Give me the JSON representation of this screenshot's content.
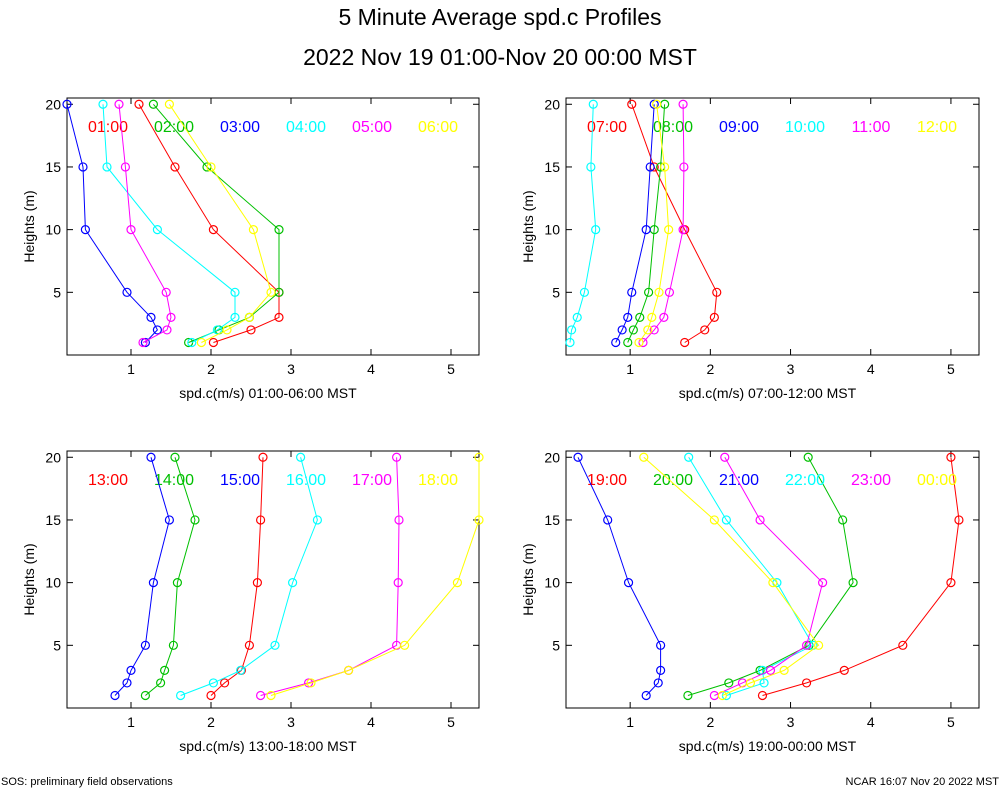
{
  "page": {
    "title": "5 Minute Average spd.c Profiles",
    "subtitle": "2022 Nov 19 01:00-Nov 20 00:00 MST",
    "footer_left": "SOS: preliminary field observations",
    "footer_right": "NCAR 16:07 Nov 20 2022 MST"
  },
  "colors": [
    "#ff0000",
    "#00c000",
    "#0000ff",
    "#00ffff",
    "#ff00ff",
    "#ffff00"
  ],
  "chart_data": [
    {
      "type": "line",
      "xlabel": "spd.c(m/s) 01:00-06:00 MST",
      "ylabel": "Heights (m)",
      "xlim": [
        0.2,
        5.35
      ],
      "ylim": [
        0,
        20.5
      ],
      "xticks": [
        1,
        2,
        3,
        4,
        5
      ],
      "yticks": [
        5,
        10,
        15,
        20
      ],
      "heights": [
        1,
        2,
        3,
        5,
        10,
        15,
        20
      ],
      "series": [
        {
          "name": "01:00",
          "values": [
            2.03,
            2.5,
            2.85,
            2.85,
            2.03,
            1.55,
            1.1
          ]
        },
        {
          "name": "02:00",
          "values": [
            1.72,
            2.1,
            2.48,
            2.85,
            2.85,
            1.95,
            1.28
          ]
        },
        {
          "name": "03:00",
          "values": [
            1.18,
            1.33,
            1.25,
            0.95,
            0.43,
            0.4,
            0.2
          ]
        },
        {
          "name": "04:00",
          "values": [
            1.76,
            2.08,
            2.3,
            2.3,
            1.33,
            0.7,
            0.65
          ]
        },
        {
          "name": "05:00",
          "values": [
            1.15,
            1.45,
            1.5,
            1.44,
            1.0,
            0.93,
            0.85
          ]
        },
        {
          "name": "06:00",
          "values": [
            1.88,
            2.2,
            2.48,
            2.75,
            2.53,
            2.0,
            1.48
          ]
        }
      ]
    },
    {
      "type": "line",
      "xlabel": "spd.c(m/s) 07:00-12:00 MST",
      "ylabel": "Heights (m)",
      "xlim": [
        0.2,
        5.35
      ],
      "ylim": [
        0,
        20.5
      ],
      "xticks": [
        1,
        2,
        3,
        4,
        5
      ],
      "yticks": [
        5,
        10,
        15,
        20
      ],
      "heights": [
        1,
        2,
        3,
        5,
        10,
        15,
        20
      ],
      "series": [
        {
          "name": "07:00",
          "values": [
            1.68,
            1.93,
            2.05,
            2.08,
            1.68,
            1.3,
            1.02
          ]
        },
        {
          "name": "08:00",
          "values": [
            0.97,
            1.04,
            1.12,
            1.23,
            1.3,
            1.38,
            1.43
          ]
        },
        {
          "name": "09:00",
          "values": [
            0.82,
            0.9,
            0.97,
            1.02,
            1.2,
            1.25,
            1.3
          ]
        },
        {
          "name": "10:00",
          "values": [
            0.25,
            0.27,
            0.34,
            0.43,
            0.57,
            0.51,
            0.54
          ]
        },
        {
          "name": "11:00",
          "values": [
            1.16,
            1.3,
            1.42,
            1.49,
            1.66,
            1.67,
            1.66
          ]
        },
        {
          "name": "12:00",
          "values": [
            1.11,
            1.22,
            1.27,
            1.36,
            1.48,
            1.43,
            1.33
          ]
        }
      ]
    },
    {
      "type": "line",
      "xlabel": "spd.c(m/s) 13:00-18:00 MST",
      "ylabel": "Heights (m)",
      "xlim": [
        0.2,
        5.35
      ],
      "ylim": [
        0,
        20.5
      ],
      "xticks": [
        1,
        2,
        3,
        4,
        5
      ],
      "yticks": [
        5,
        10,
        15,
        20
      ],
      "heights": [
        1,
        2,
        3,
        5,
        10,
        15,
        20
      ],
      "series": [
        {
          "name": "13:00",
          "values": [
            2.0,
            2.17,
            2.38,
            2.48,
            2.58,
            2.62,
            2.65
          ]
        },
        {
          "name": "14:00",
          "values": [
            1.18,
            1.37,
            1.42,
            1.53,
            1.58,
            1.8,
            1.55
          ]
        },
        {
          "name": "15:00",
          "values": [
            0.8,
            0.95,
            1.0,
            1.18,
            1.28,
            1.48,
            1.25
          ]
        },
        {
          "name": "16:00",
          "values": [
            1.62,
            2.03,
            2.37,
            2.8,
            3.02,
            3.33,
            3.12
          ]
        },
        {
          "name": "17:00",
          "values": [
            2.62,
            3.22,
            3.72,
            4.32,
            4.34,
            4.35,
            4.32
          ]
        },
        {
          "name": "18:00",
          "values": [
            2.75,
            3.25,
            3.72,
            4.42,
            5.08,
            5.35,
            5.35
          ]
        }
      ]
    },
    {
      "type": "line",
      "xlabel": "spd.c(m/s) 19:00-00:00 MST",
      "ylabel": "Heights (m)",
      "xlim": [
        0.2,
        5.35
      ],
      "ylim": [
        0,
        20.5
      ],
      "xticks": [
        1,
        2,
        3,
        4,
        5
      ],
      "yticks": [
        5,
        10,
        15,
        20
      ],
      "heights": [
        1,
        2,
        3,
        5,
        10,
        15,
        20
      ],
      "series": [
        {
          "name": "19:00",
          "values": [
            2.65,
            3.2,
            3.67,
            4.4,
            5.0,
            5.1,
            5.0
          ]
        },
        {
          "name": "20:00",
          "values": [
            1.72,
            2.23,
            2.62,
            3.23,
            3.78,
            3.65,
            3.22
          ]
        },
        {
          "name": "21:00",
          "values": [
            1.2,
            1.35,
            1.38,
            1.38,
            0.98,
            0.72,
            0.35
          ]
        },
        {
          "name": "22:00",
          "values": [
            2.2,
            2.67,
            2.65,
            3.28,
            2.83,
            2.2,
            1.73
          ]
        },
        {
          "name": "23:00",
          "values": [
            2.05,
            2.4,
            2.75,
            3.2,
            3.4,
            2.62,
            2.18
          ]
        },
        {
          "name": "00:00",
          "values": [
            2.15,
            2.5,
            2.92,
            3.35,
            2.78,
            2.05,
            1.17
          ]
        }
      ]
    }
  ]
}
